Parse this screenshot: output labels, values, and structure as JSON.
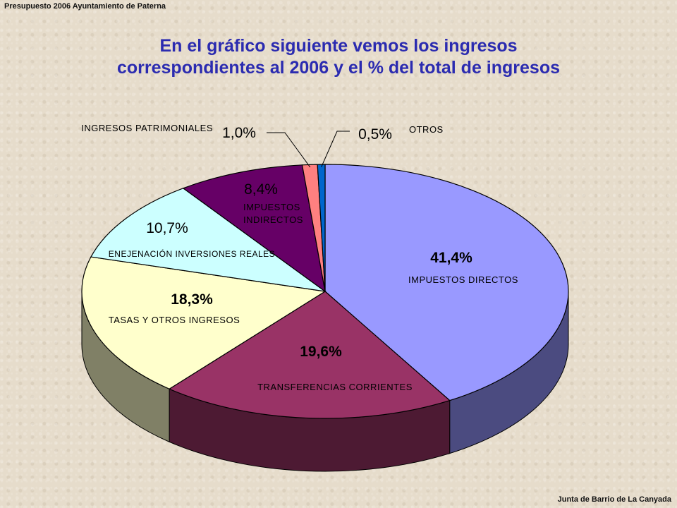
{
  "header": {
    "note": "Presupuesto 2006 Ayuntamiento de Paterna"
  },
  "title": {
    "line1": "En el gráfico siguiente vemos los ingresos",
    "line2": "correspondientes al 2006 y el % del total de ingresos"
  },
  "footer": {
    "note": "Junta de Barrio de La Canyada"
  },
  "chart_data": {
    "type": "pie",
    "style": "3d",
    "legend": "none",
    "slices": [
      {
        "label": "IMPUESTOS DIRECTOS",
        "value": 41.4,
        "value_label": "41,4%",
        "color": "#9999ff",
        "side_color": "#4b4b80"
      },
      {
        "label": "TRANSFERENCIAS CORRIENTES",
        "value": 19.6,
        "value_label": "19,6%",
        "color": "#993366",
        "side_color": "#4d1a33"
      },
      {
        "label": "TASAS Y OTROS INGRESOS",
        "value": 18.3,
        "value_label": "18,3%",
        "color": "#ffffcc",
        "side_color": "#808066"
      },
      {
        "label": "ENEJENACIÓN INVERSIONES REALES",
        "value": 10.7,
        "value_label": "10,7%",
        "color": "#ccffff",
        "side_color": "#668080"
      },
      {
        "label": "IMPUESTOS INDIRECTOS",
        "value": 8.4,
        "value_label": "8,4%",
        "color": "#660066",
        "side_color": "#330033"
      },
      {
        "label": "INGRESOS PATRIMONIALES",
        "value": 1.0,
        "value_label": "1,0%",
        "color": "#ff8080",
        "side_color": "#804040"
      },
      {
        "label": "OTROS",
        "value": 0.5,
        "value_label": "0,5%",
        "color": "#0066cc",
        "side_color": "#003366"
      }
    ]
  }
}
